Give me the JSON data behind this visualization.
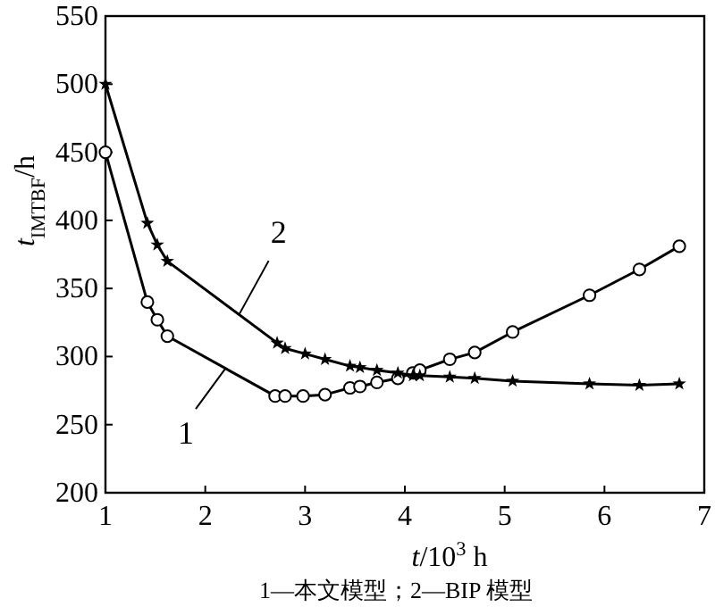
{
  "chart_data": {
    "type": "line",
    "xlabel": "*t*/10$^{3}$ h",
    "ylabel": "*t*$_{IMTBF}$/h",
    "xlim": [
      1,
      7
    ],
    "ylim": [
      200,
      550
    ],
    "xticks": [
      1,
      2,
      3,
      4,
      5,
      6,
      7
    ],
    "yticks": [
      200,
      250,
      300,
      350,
      400,
      450,
      500,
      550
    ],
    "grid": false,
    "line_style": "solid",
    "series": [
      {
        "color": "#000000",
        "marker": "circle",
        "x": [
          1,
          1.42,
          1.52,
          1.62,
          2.7,
          2.8,
          2.98,
          3.2,
          3.45,
          3.55,
          3.72,
          3.93,
          4.08,
          4.15,
          4.45,
          4.7,
          5.08,
          5.85,
          6.35,
          6.75
        ],
        "values": [
          450,
          340,
          327,
          315,
          271,
          271,
          271,
          272,
          277,
          278,
          281,
          284,
          288,
          290,
          298,
          303,
          318,
          345,
          364,
          381
        ]
      },
      {
        "color": "#000000",
        "marker": "star",
        "x": [
          1,
          1.42,
          1.52,
          1.62,
          2.72,
          2.8,
          3,
          3.2,
          3.45,
          3.55,
          3.72,
          3.93,
          4.08,
          4.15,
          4.45,
          4.7,
          5.08,
          5.85,
          6.35,
          6.75
        ],
        "values": [
          500,
          398,
          382,
          370,
          310,
          306,
          302,
          298,
          293,
          292,
          290,
          288,
          286,
          286,
          285,
          284,
          282,
          280,
          279,
          280
        ]
      }
    ],
    "annotations": [
      {
        "text": "1",
        "x": 2.2,
        "y": 291
      },
      {
        "text": "2",
        "x": 2.34,
        "y": 331
      },
      "1—本文模型；2—BIP 模型"
    ]
  }
}
